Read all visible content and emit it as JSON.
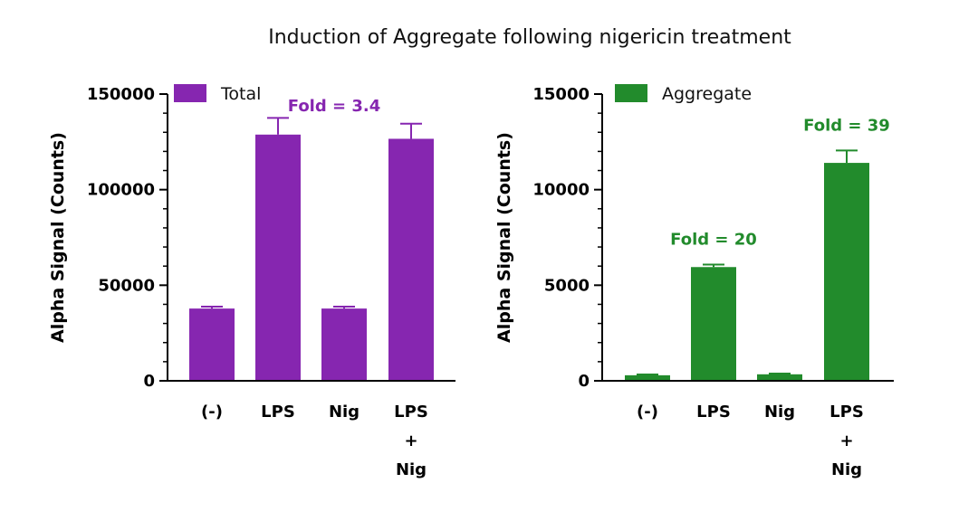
{
  "figure_title": "Induction of Aggregate following nigericin treatment",
  "chart_data": [
    {
      "type": "bar",
      "categories": [
        [
          "(-)"
        ],
        [
          "LPS"
        ],
        [
          "Nig"
        ],
        [
          "LPS",
          "+",
          "Nig"
        ]
      ],
      "ylabel": "Alpha Signal (Counts)",
      "ylim": [
        0,
        150000
      ],
      "yticks": [
        0,
        50000,
        100000,
        150000
      ],
      "yticks_labels": [
        "0",
        "50000",
        "100000",
        "150000"
      ],
      "minor_ticks": 4,
      "legend": "top-left",
      "series": [
        {
          "name": "Total",
          "color": "#8626b0",
          "values": [
            37800,
            128800,
            37800,
            126600
          ],
          "errors": [
            1000,
            8700,
            1000,
            7900
          ]
        }
      ],
      "annotations": [
        {
          "text": "Fold = 3.4",
          "category_index": 1,
          "color": "#8626b0"
        }
      ]
    },
    {
      "type": "bar",
      "categories": [
        [
          "(-)"
        ],
        [
          "LPS"
        ],
        [
          "Nig"
        ],
        [
          "LPS",
          "+",
          "Nig"
        ]
      ],
      "ylabel": "Alpha Signal (Counts)",
      "ylim": [
        0,
        15000
      ],
      "yticks": [
        0,
        5000,
        10000,
        15000
      ],
      "yticks_labels": [
        "0",
        "5000",
        "10000",
        "15000"
      ],
      "minor_ticks": 4,
      "legend": "top-left",
      "series": [
        {
          "name": "Aggregate",
          "color": "#228b2c",
          "values": [
            290,
            5950,
            340,
            11400
          ],
          "errors": [
            40,
            130,
            40,
            650
          ]
        }
      ],
      "annotations": [
        {
          "text": "Fold = 20",
          "category_index": 1,
          "color": "#228b2c"
        },
        {
          "text": "Fold = 39",
          "category_index": 3,
          "color": "#228b2c"
        }
      ]
    }
  ]
}
